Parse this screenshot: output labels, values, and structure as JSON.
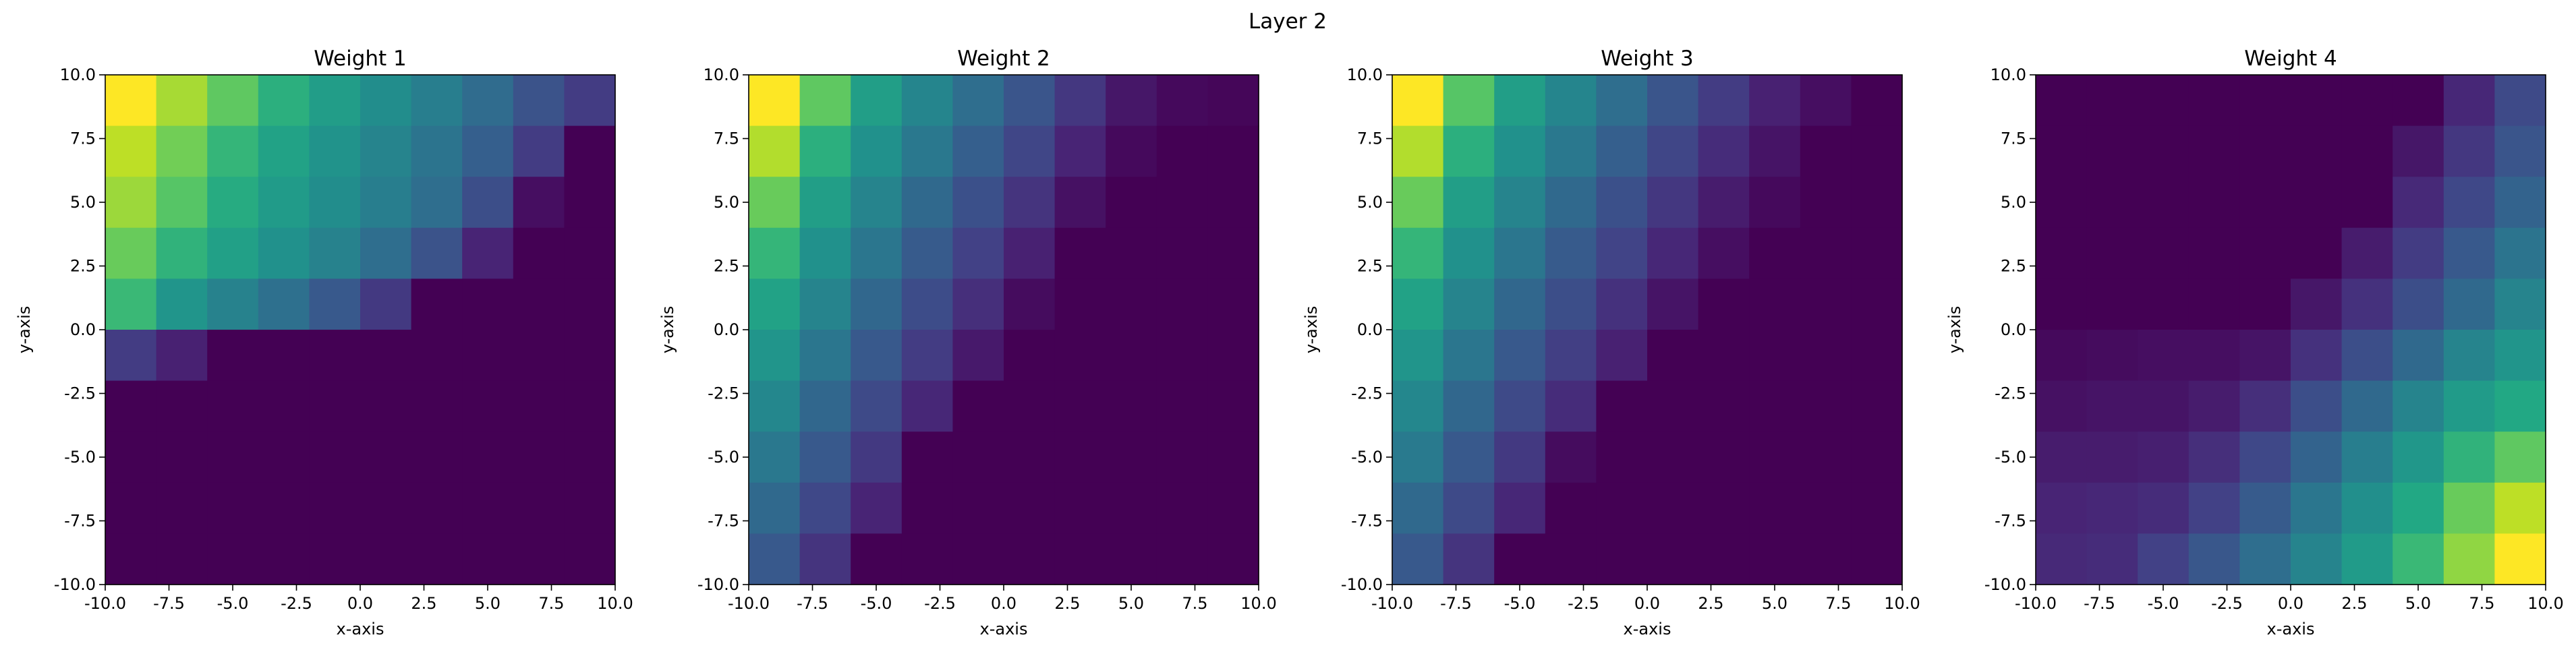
{
  "figure": {
    "suptitle": "Layer 2"
  },
  "chart_data": [
    {
      "type": "heatmap",
      "title": "Weight 1",
      "xlabel": "x-axis",
      "ylabel": "y-axis",
      "xlim": [
        -10,
        10
      ],
      "ylim": [
        -10,
        10
      ],
      "xticks": [
        "-10.0",
        "-7.5",
        "-5.0",
        "-2.5",
        "0.0",
        "2.5",
        "5.0",
        "7.5",
        "10.0"
      ],
      "yticks": [
        "-10.0",
        "-7.5",
        "-5.0",
        "-2.5",
        "0.0",
        "2.5",
        "5.0",
        "7.5",
        "10.0"
      ],
      "colormap": "viridis",
      "grid": false,
      "z": [
        [
          1.0,
          0.92,
          0.85,
          0.77,
          0.69,
          0.61,
          0.53,
          0.44,
          0.32,
          0.22
        ],
        [
          0.94,
          0.87,
          0.79,
          0.72,
          0.64,
          0.56,
          0.48,
          0.38,
          0.22,
          0.0
        ],
        [
          0.91,
          0.84,
          0.76,
          0.68,
          0.61,
          0.53,
          0.45,
          0.3,
          0.05,
          0.0
        ],
        [
          0.86,
          0.78,
          0.71,
          0.63,
          0.55,
          0.45,
          0.32,
          0.13,
          0.0,
          0.0
        ],
        [
          0.8,
          0.65,
          0.55,
          0.46,
          0.35,
          0.21,
          0.0,
          0.0,
          0.0,
          0.0
        ],
        [
          0.22,
          0.12,
          0.0,
          0.0,
          0.0,
          0.0,
          0.0,
          0.0,
          0.0,
          0.0
        ],
        [
          0.0,
          0.0,
          0.0,
          0.0,
          0.0,
          0.0,
          0.0,
          0.0,
          0.0,
          0.0
        ],
        [
          0.0,
          0.0,
          0.0,
          0.0,
          0.0,
          0.0,
          0.0,
          0.0,
          0.0,
          0.0
        ],
        [
          0.0,
          0.0,
          0.0,
          0.0,
          0.0,
          0.0,
          0.0,
          0.0,
          0.0,
          0.0
        ],
        [
          0.0,
          0.0,
          0.0,
          0.0,
          0.0,
          0.0,
          0.0,
          0.0,
          0.0,
          0.0
        ]
      ]
    },
    {
      "type": "heatmap",
      "title": "Weight 2",
      "xlabel": "x-axis",
      "ylabel": "y-axis",
      "xlim": [
        -10,
        10
      ],
      "ylim": [
        -10,
        10
      ],
      "xticks": [
        "-10.0",
        "-7.5",
        "-5.0",
        "-2.5",
        "0.0",
        "2.5",
        "5.0",
        "7.5",
        "10.0"
      ],
      "yticks": [
        "-10.0",
        "-7.5",
        "-5.0",
        "-2.5",
        "0.0",
        "2.5",
        "5.0",
        "7.5",
        "10.0"
      ],
      "colormap": "viridis",
      "grid": false,
      "z": [
        [
          1.0,
          0.85,
          0.7,
          0.57,
          0.45,
          0.33,
          0.2,
          0.08,
          0.03,
          0.02
        ],
        [
          0.93,
          0.77,
          0.63,
          0.5,
          0.38,
          0.26,
          0.13,
          0.03,
          0.0,
          0.0
        ],
        [
          0.86,
          0.7,
          0.56,
          0.43,
          0.31,
          0.19,
          0.06,
          0.0,
          0.0,
          0.0
        ],
        [
          0.79,
          0.63,
          0.49,
          0.36,
          0.24,
          0.12,
          0.0,
          0.0,
          0.0,
          0.0
        ],
        [
          0.72,
          0.56,
          0.42,
          0.29,
          0.17,
          0.04,
          0.0,
          0.0,
          0.0,
          0.0
        ],
        [
          0.65,
          0.49,
          0.35,
          0.22,
          0.09,
          0.0,
          0.0,
          0.0,
          0.0,
          0.0
        ],
        [
          0.58,
          0.42,
          0.28,
          0.14,
          0.0,
          0.0,
          0.0,
          0.0,
          0.0,
          0.0
        ],
        [
          0.5,
          0.35,
          0.21,
          0.0,
          0.0,
          0.0,
          0.0,
          0.0,
          0.0,
          0.0
        ],
        [
          0.43,
          0.27,
          0.13,
          0.0,
          0.0,
          0.0,
          0.0,
          0.0,
          0.0,
          0.0
        ],
        [
          0.35,
          0.19,
          0.0,
          0.0,
          0.0,
          0.0,
          0.0,
          0.0,
          0.0,
          0.0
        ]
      ]
    },
    {
      "type": "heatmap",
      "title": "Weight 3",
      "xlabel": "x-axis",
      "ylabel": "y-axis",
      "xlim": [
        -10,
        10
      ],
      "ylim": [
        -10,
        10
      ],
      "xticks": [
        "-10.0",
        "-7.5",
        "-5.0",
        "-2.5",
        "0.0",
        "2.5",
        "5.0",
        "7.5",
        "10.0"
      ],
      "yticks": [
        "-10.0",
        "-7.5",
        "-5.0",
        "-2.5",
        "0.0",
        "2.5",
        "5.0",
        "7.5",
        "10.0"
      ],
      "colormap": "viridis",
      "grid": false,
      "z": [
        [
          1.0,
          0.84,
          0.7,
          0.57,
          0.45,
          0.33,
          0.22,
          0.12,
          0.05,
          0.0
        ],
        [
          0.93,
          0.77,
          0.63,
          0.5,
          0.38,
          0.26,
          0.16,
          0.07,
          0.0,
          0.0
        ],
        [
          0.86,
          0.7,
          0.56,
          0.43,
          0.31,
          0.2,
          0.1,
          0.03,
          0.0,
          0.0
        ],
        [
          0.79,
          0.63,
          0.49,
          0.36,
          0.25,
          0.14,
          0.05,
          0.0,
          0.0,
          0.0
        ],
        [
          0.72,
          0.56,
          0.42,
          0.3,
          0.18,
          0.07,
          0.0,
          0.0,
          0.0,
          0.0
        ],
        [
          0.65,
          0.49,
          0.35,
          0.23,
          0.12,
          0.0,
          0.0,
          0.0,
          0.0,
          0.0
        ],
        [
          0.58,
          0.42,
          0.28,
          0.16,
          0.0,
          0.0,
          0.0,
          0.0,
          0.0,
          0.0
        ],
        [
          0.51,
          0.35,
          0.21,
          0.04,
          0.0,
          0.0,
          0.0,
          0.0,
          0.0,
          0.0
        ],
        [
          0.43,
          0.28,
          0.14,
          0.0,
          0.0,
          0.0,
          0.0,
          0.0,
          0.0,
          0.0
        ],
        [
          0.35,
          0.19,
          0.0,
          0.0,
          0.0,
          0.0,
          0.0,
          0.0,
          0.0,
          0.0
        ]
      ]
    },
    {
      "type": "heatmap",
      "title": "Weight 4",
      "xlabel": "x-axis",
      "ylabel": "y-axis",
      "xlim": [
        -10,
        10
      ],
      "ylim": [
        -10,
        10
      ],
      "xticks": [
        "-10.0",
        "-7.5",
        "-5.0",
        "-2.5",
        "0.0",
        "2.5",
        "5.0",
        "7.5",
        "10.0"
      ],
      "yticks": [
        "-10.0",
        "-7.5",
        "-5.0",
        "-2.5",
        "0.0",
        "2.5",
        "5.0",
        "7.5",
        "10.0"
      ],
      "colormap": "viridis",
      "grid": false,
      "z": [
        [
          0.0,
          0.0,
          0.0,
          0.0,
          0.0,
          0.0,
          0.0,
          0.0,
          0.14,
          0.28
        ],
        [
          0.0,
          0.0,
          0.0,
          0.0,
          0.0,
          0.0,
          0.0,
          0.08,
          0.2,
          0.33
        ],
        [
          0.0,
          0.0,
          0.0,
          0.0,
          0.0,
          0.0,
          0.0,
          0.15,
          0.27,
          0.4
        ],
        [
          0.0,
          0.0,
          0.0,
          0.0,
          0.0,
          0.0,
          0.1,
          0.22,
          0.35,
          0.48
        ],
        [
          0.0,
          0.0,
          0.0,
          0.0,
          0.0,
          0.08,
          0.18,
          0.3,
          0.43,
          0.56
        ],
        [
          0.03,
          0.04,
          0.05,
          0.05,
          0.07,
          0.18,
          0.3,
          0.43,
          0.56,
          0.65
        ],
        [
          0.06,
          0.07,
          0.07,
          0.1,
          0.17,
          0.3,
          0.43,
          0.56,
          0.68,
          0.75
        ],
        [
          0.1,
          0.1,
          0.11,
          0.17,
          0.27,
          0.4,
          0.53,
          0.66,
          0.78,
          0.85
        ],
        [
          0.13,
          0.14,
          0.16,
          0.24,
          0.36,
          0.49,
          0.62,
          0.75,
          0.86,
          0.94
        ],
        [
          0.15,
          0.16,
          0.24,
          0.34,
          0.45,
          0.56,
          0.68,
          0.8,
          0.9,
          1.0
        ]
      ]
    }
  ]
}
